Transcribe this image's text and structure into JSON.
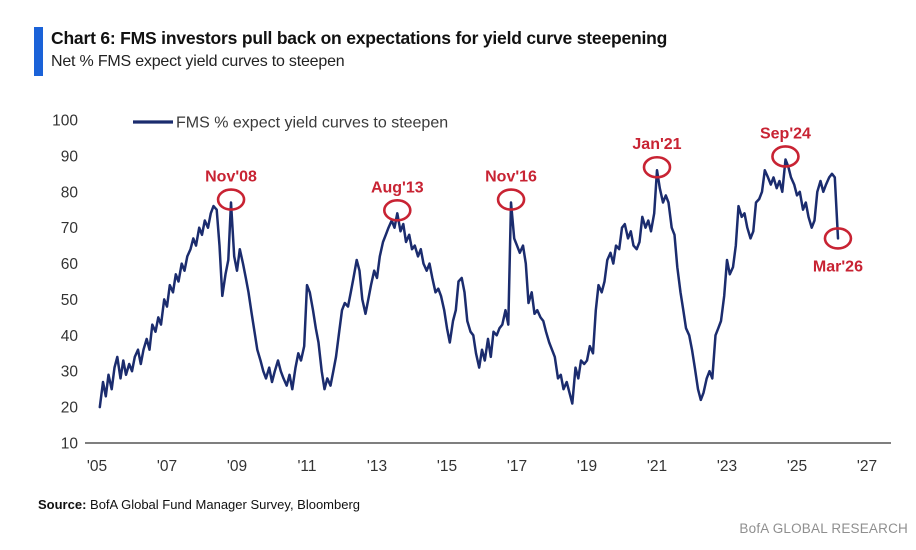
{
  "header": {
    "title": "Chart 6: FMS investors pull back on expectations for yield curve steepening",
    "subtitle": "Net % FMS expect yield curves to steepen"
  },
  "footer": {
    "source_label": "Source:",
    "source_text": " BofA Global Fund Manager Survey, Bloomberg",
    "brand": "BofA GLOBAL RESEARCH"
  },
  "colors": {
    "accent": "#1a62d8",
    "line": "#1b2c6e",
    "annotation": "#c82333",
    "axis": "#7f7f7f",
    "tick_text": "#333333",
    "legend_text": "#3a3a3a"
  },
  "chart_data": {
    "type": "line",
    "legend": "FMS % expect yield curves to steepen",
    "legend_position": "top-left",
    "xlabel": "",
    "ylabel": "",
    "ylim": [
      10,
      100
    ],
    "xlim": [
      2004.7,
      2027.6
    ],
    "grid": false,
    "y_ticks": [
      100,
      90,
      80,
      70,
      60,
      50,
      40,
      30,
      20,
      10
    ],
    "x_ticks": [
      {
        "year": 2005,
        "label": "'05"
      },
      {
        "year": 2007,
        "label": "'07"
      },
      {
        "year": 2009,
        "label": "'09"
      },
      {
        "year": 2011,
        "label": "'11"
      },
      {
        "year": 2013,
        "label": "'13"
      },
      {
        "year": 2015,
        "label": "'15"
      },
      {
        "year": 2017,
        "label": "'17"
      },
      {
        "year": 2019,
        "label": "'19"
      },
      {
        "year": 2021,
        "label": "'21"
      },
      {
        "year": 2023,
        "label": "'23"
      },
      {
        "year": 2025,
        "label": "'25"
      },
      {
        "year": 2027,
        "label": "'27"
      }
    ],
    "annotations": [
      {
        "label": "Nov'08",
        "year": 2008.83,
        "value": 77,
        "placement": "above"
      },
      {
        "label": "Aug'13",
        "year": 2013.58,
        "value": 74,
        "placement": "above"
      },
      {
        "label": "Nov'16",
        "year": 2016.83,
        "value": 77,
        "placement": "above"
      },
      {
        "label": "Jan'21",
        "year": 2021.0,
        "value": 86,
        "placement": "above"
      },
      {
        "label": "Sep'24",
        "year": 2024.67,
        "value": 89,
        "placement": "above"
      },
      {
        "label": "Mar'26",
        "year": 2026.17,
        "value": 67,
        "placement": "below"
      }
    ],
    "series": [
      {
        "name": "FMS % expect yield curves to steepen",
        "points": [
          [
            2005.08,
            20
          ],
          [
            2005.17,
            27
          ],
          [
            2005.25,
            23
          ],
          [
            2005.33,
            29
          ],
          [
            2005.42,
            25
          ],
          [
            2005.5,
            31
          ],
          [
            2005.58,
            34
          ],
          [
            2005.67,
            28
          ],
          [
            2005.75,
            33
          ],
          [
            2005.83,
            29
          ],
          [
            2005.92,
            32
          ],
          [
            2006.0,
            30
          ],
          [
            2006.08,
            34
          ],
          [
            2006.17,
            36
          ],
          [
            2006.25,
            32
          ],
          [
            2006.33,
            36
          ],
          [
            2006.42,
            39
          ],
          [
            2006.5,
            36
          ],
          [
            2006.58,
            43
          ],
          [
            2006.67,
            41
          ],
          [
            2006.75,
            45
          ],
          [
            2006.83,
            43
          ],
          [
            2006.92,
            50
          ],
          [
            2007.0,
            48
          ],
          [
            2007.08,
            54
          ],
          [
            2007.17,
            52
          ],
          [
            2007.25,
            57
          ],
          [
            2007.33,
            55
          ],
          [
            2007.42,
            60
          ],
          [
            2007.5,
            58
          ],
          [
            2007.58,
            62
          ],
          [
            2007.67,
            64
          ],
          [
            2007.75,
            67
          ],
          [
            2007.83,
            65
          ],
          [
            2007.92,
            70
          ],
          [
            2008.0,
            68
          ],
          [
            2008.08,
            72
          ],
          [
            2008.17,
            70
          ],
          [
            2008.25,
            74
          ],
          [
            2008.33,
            76
          ],
          [
            2008.42,
            75
          ],
          [
            2008.5,
            65
          ],
          [
            2008.58,
            51
          ],
          [
            2008.67,
            57
          ],
          [
            2008.75,
            61
          ],
          [
            2008.83,
            77
          ],
          [
            2008.92,
            62
          ],
          [
            2009.0,
            58
          ],
          [
            2009.08,
            64
          ],
          [
            2009.17,
            60
          ],
          [
            2009.25,
            56
          ],
          [
            2009.33,
            52
          ],
          [
            2009.42,
            46
          ],
          [
            2009.5,
            41
          ],
          [
            2009.58,
            36
          ],
          [
            2009.67,
            33
          ],
          [
            2009.75,
            30
          ],
          [
            2009.83,
            28
          ],
          [
            2009.92,
            31
          ],
          [
            2010.0,
            27
          ],
          [
            2010.08,
            30
          ],
          [
            2010.17,
            33
          ],
          [
            2010.25,
            30
          ],
          [
            2010.33,
            28
          ],
          [
            2010.42,
            26
          ],
          [
            2010.5,
            29
          ],
          [
            2010.58,
            25
          ],
          [
            2010.67,
            31
          ],
          [
            2010.75,
            35
          ],
          [
            2010.83,
            33
          ],
          [
            2010.92,
            37
          ],
          [
            2011.0,
            54
          ],
          [
            2011.08,
            52
          ],
          [
            2011.17,
            47
          ],
          [
            2011.25,
            42
          ],
          [
            2011.33,
            38
          ],
          [
            2011.42,
            30
          ],
          [
            2011.5,
            25
          ],
          [
            2011.58,
            28
          ],
          [
            2011.67,
            26
          ],
          [
            2011.75,
            30
          ],
          [
            2011.83,
            34
          ],
          [
            2011.92,
            41
          ],
          [
            2012.0,
            47
          ],
          [
            2012.08,
            49
          ],
          [
            2012.17,
            48
          ],
          [
            2012.25,
            52
          ],
          [
            2012.33,
            56
          ],
          [
            2012.42,
            61
          ],
          [
            2012.5,
            58
          ],
          [
            2012.58,
            50
          ],
          [
            2012.67,
            46
          ],
          [
            2012.75,
            50
          ],
          [
            2012.83,
            54
          ],
          [
            2012.92,
            58
          ],
          [
            2013.0,
            56
          ],
          [
            2013.08,
            62
          ],
          [
            2013.17,
            66
          ],
          [
            2013.25,
            68
          ],
          [
            2013.33,
            70
          ],
          [
            2013.42,
            72
          ],
          [
            2013.5,
            70
          ],
          [
            2013.58,
            74
          ],
          [
            2013.67,
            69
          ],
          [
            2013.75,
            71
          ],
          [
            2013.83,
            66
          ],
          [
            2013.92,
            68
          ],
          [
            2014.0,
            64
          ],
          [
            2014.08,
            65
          ],
          [
            2014.17,
            62
          ],
          [
            2014.25,
            64
          ],
          [
            2014.33,
            60
          ],
          [
            2014.42,
            58
          ],
          [
            2014.5,
            60
          ],
          [
            2014.58,
            56
          ],
          [
            2014.67,
            52
          ],
          [
            2014.75,
            53
          ],
          [
            2014.83,
            51
          ],
          [
            2014.92,
            47
          ],
          [
            2015.0,
            42
          ],
          [
            2015.08,
            38
          ],
          [
            2015.17,
            44
          ],
          [
            2015.25,
            47
          ],
          [
            2015.33,
            55
          ],
          [
            2015.42,
            56
          ],
          [
            2015.5,
            52
          ],
          [
            2015.58,
            44
          ],
          [
            2015.67,
            41
          ],
          [
            2015.75,
            40
          ],
          [
            2015.83,
            35
          ],
          [
            2015.92,
            31
          ],
          [
            2016.0,
            36
          ],
          [
            2016.08,
            33
          ],
          [
            2016.17,
            39
          ],
          [
            2016.25,
            34
          ],
          [
            2016.33,
            41
          ],
          [
            2016.42,
            40
          ],
          [
            2016.5,
            42
          ],
          [
            2016.58,
            43
          ],
          [
            2016.67,
            47
          ],
          [
            2016.75,
            43
          ],
          [
            2016.83,
            77
          ],
          [
            2016.92,
            67
          ],
          [
            2017.0,
            65
          ],
          [
            2017.08,
            63
          ],
          [
            2017.17,
            65
          ],
          [
            2017.25,
            60
          ],
          [
            2017.33,
            49
          ],
          [
            2017.42,
            52
          ],
          [
            2017.5,
            46
          ],
          [
            2017.58,
            47
          ],
          [
            2017.67,
            45
          ],
          [
            2017.75,
            44
          ],
          [
            2017.83,
            41
          ],
          [
            2017.92,
            38
          ],
          [
            2018.0,
            36
          ],
          [
            2018.08,
            34
          ],
          [
            2018.17,
            28
          ],
          [
            2018.25,
            29
          ],
          [
            2018.33,
            25
          ],
          [
            2018.42,
            27
          ],
          [
            2018.5,
            24
          ],
          [
            2018.58,
            21
          ],
          [
            2018.67,
            31
          ],
          [
            2018.75,
            28
          ],
          [
            2018.83,
            33
          ],
          [
            2018.92,
            32
          ],
          [
            2019.0,
            33
          ],
          [
            2019.08,
            37
          ],
          [
            2019.17,
            35
          ],
          [
            2019.25,
            47
          ],
          [
            2019.33,
            54
          ],
          [
            2019.42,
            52
          ],
          [
            2019.5,
            55
          ],
          [
            2019.58,
            61
          ],
          [
            2019.67,
            63
          ],
          [
            2019.75,
            60
          ],
          [
            2019.83,
            65
          ],
          [
            2019.92,
            64
          ],
          [
            2020.0,
            70
          ],
          [
            2020.08,
            71
          ],
          [
            2020.17,
            67
          ],
          [
            2020.25,
            69
          ],
          [
            2020.33,
            65
          ],
          [
            2020.42,
            64
          ],
          [
            2020.5,
            66
          ],
          [
            2020.58,
            73
          ],
          [
            2020.67,
            70
          ],
          [
            2020.75,
            72
          ],
          [
            2020.83,
            69
          ],
          [
            2020.92,
            74
          ],
          [
            2021.0,
            86
          ],
          [
            2021.08,
            81
          ],
          [
            2021.17,
            77
          ],
          [
            2021.25,
            79
          ],
          [
            2021.33,
            77
          ],
          [
            2021.42,
            70
          ],
          [
            2021.5,
            68
          ],
          [
            2021.58,
            59
          ],
          [
            2021.67,
            52
          ],
          [
            2021.75,
            47
          ],
          [
            2021.83,
            42
          ],
          [
            2021.92,
            40
          ],
          [
            2022.0,
            36
          ],
          [
            2022.08,
            31
          ],
          [
            2022.17,
            25
          ],
          [
            2022.25,
            22
          ],
          [
            2022.33,
            24
          ],
          [
            2022.42,
            28
          ],
          [
            2022.5,
            30
          ],
          [
            2022.58,
            28
          ],
          [
            2022.67,
            40
          ],
          [
            2022.75,
            42
          ],
          [
            2022.83,
            44
          ],
          [
            2022.92,
            51
          ],
          [
            2023.0,
            61
          ],
          [
            2023.08,
            57
          ],
          [
            2023.17,
            59
          ],
          [
            2023.25,
            65
          ],
          [
            2023.33,
            76
          ],
          [
            2023.42,
            73
          ],
          [
            2023.5,
            74
          ],
          [
            2023.58,
            70
          ],
          [
            2023.67,
            67
          ],
          [
            2023.75,
            69
          ],
          [
            2023.83,
            77
          ],
          [
            2023.92,
            78
          ],
          [
            2024.0,
            80
          ],
          [
            2024.08,
            86
          ],
          [
            2024.17,
            84
          ],
          [
            2024.25,
            82
          ],
          [
            2024.33,
            84
          ],
          [
            2024.42,
            81
          ],
          [
            2024.5,
            83
          ],
          [
            2024.58,
            80
          ],
          [
            2024.67,
            89
          ],
          [
            2024.75,
            87
          ],
          [
            2024.83,
            84
          ],
          [
            2024.92,
            82
          ],
          [
            2025.0,
            79
          ],
          [
            2025.08,
            80
          ],
          [
            2025.17,
            75
          ],
          [
            2025.25,
            77
          ],
          [
            2025.33,
            73
          ],
          [
            2025.42,
            70
          ],
          [
            2025.5,
            72
          ],
          [
            2025.58,
            80
          ],
          [
            2025.67,
            83
          ],
          [
            2025.75,
            80
          ],
          [
            2025.83,
            82
          ],
          [
            2025.92,
            84
          ],
          [
            2026.0,
            85
          ],
          [
            2026.08,
            84
          ],
          [
            2026.17,
            67
          ]
        ]
      }
    ]
  }
}
